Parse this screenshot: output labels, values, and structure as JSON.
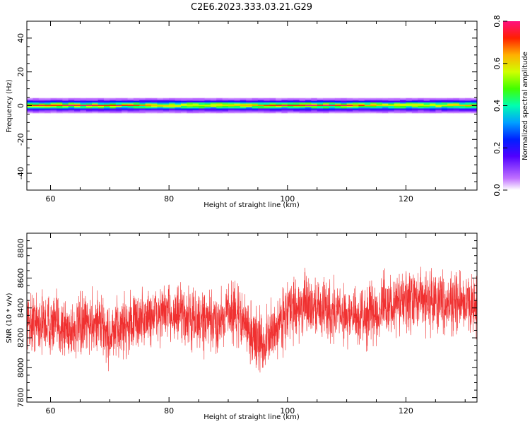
{
  "title": "C2E6.2023.333.03.21.G29",
  "chart_data": [
    {
      "type": "heatmap",
      "xlabel": "Height of straight line (km)",
      "ylabel": "Frequency (Hz)",
      "xlim": [
        56,
        132
      ],
      "ylim": [
        -50,
        50
      ],
      "xticks": [
        60,
        80,
        100,
        120
      ],
      "yticks": [
        -40,
        -20,
        0,
        20,
        40
      ],
      "band": {
        "center_hz": 0,
        "rows": [
          {
            "offset_hz": 4,
            "amplitude": 0.05
          },
          {
            "offset_hz": 3,
            "amplitude": 0.12
          },
          {
            "offset_hz": 2.2,
            "amplitude": 0.2
          },
          {
            "offset_hz": 1.4,
            "amplitude": 0.38
          },
          {
            "offset_hz": 0.7,
            "amplitude": 0.5
          },
          {
            "offset_hz": 0,
            "amplitude": 0.8
          },
          {
            "offset_hz": -0.7,
            "amplitude": 0.5
          },
          {
            "offset_hz": -1.4,
            "amplitude": 0.38
          },
          {
            "offset_hz": -2.2,
            "amplitude": 0.2
          },
          {
            "offset_hz": -3,
            "amplitude": 0.12
          },
          {
            "offset_hz": -4,
            "amplitude": 0.05
          }
        ]
      },
      "colorbar": {
        "label": "Normalized spectral amplitude",
        "range": [
          0,
          0.8
        ],
        "ticks": [
          "0.0",
          "0.2",
          "0.4",
          "0.6",
          "0.8"
        ]
      }
    },
    {
      "type": "line",
      "xlabel": "Height of straight line (km)",
      "ylabel": "SNR (10 * v/v)",
      "xlim": [
        56,
        132
      ],
      "ylim": [
        7770,
        8900
      ],
      "xticks": [
        60,
        80,
        100,
        120
      ],
      "yticks": [
        7800,
        8000,
        8200,
        8400,
        8600,
        8800
      ],
      "series": [
        {
          "color": "#f03030",
          "x": [
            56,
            60,
            64,
            68,
            70,
            72,
            76,
            80,
            84,
            88,
            90,
            92,
            94,
            96,
            100,
            104,
            108,
            112,
            116,
            120,
            124,
            128,
            132
          ],
          "mean": [
            8310,
            8290,
            8250,
            8320,
            8200,
            8280,
            8330,
            8370,
            8320,
            8290,
            8390,
            8340,
            8220,
            8150,
            8380,
            8420,
            8380,
            8330,
            8400,
            8440,
            8460,
            8430,
            8420
          ],
          "spread": 180
        }
      ]
    }
  ]
}
